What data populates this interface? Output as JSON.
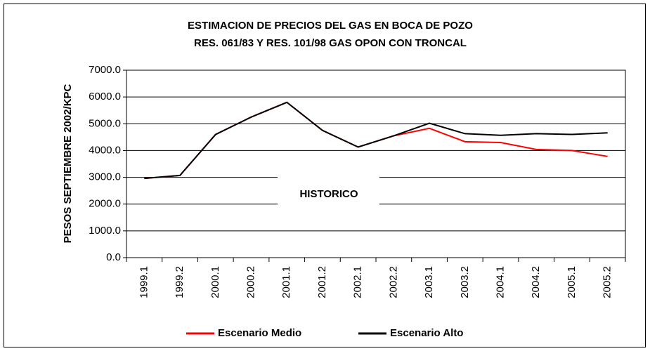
{
  "chart_data": {
    "type": "line",
    "title": "ESTIMACION DE PRECIOS DEL GAS EN BOCA DE POZO",
    "subtitle": "RES. 061/83 Y RES. 101/98 GAS OPON CON TRONCAL",
    "y_label": "PESOS SEPTIEMBRE 2002/KPC",
    "annotation": "HISTORICO",
    "categories": [
      "1999.1",
      "1999.2",
      "2000.1",
      "2000.2",
      "2001.1",
      "2001.2",
      "2002.1",
      "2002.2",
      "2003.1",
      "2003.2",
      "2004.1",
      "2004.2",
      "2005.1",
      "2005.2"
    ],
    "series": [
      {
        "name": "Escenario Medio",
        "color": "#ff0000",
        "values": [
          2960,
          3070,
          4600,
          5250,
          5800,
          4750,
          4130,
          4550,
          4830,
          4330,
          4300,
          4040,
          4000,
          3780
        ]
      },
      {
        "name": "Escenario Alto",
        "color": "#000000",
        "values": [
          2960,
          3070,
          4600,
          5250,
          5800,
          4750,
          4130,
          4550,
          5020,
          4630,
          4570,
          4630,
          4600,
          4660
        ]
      }
    ],
    "ylim": [
      0,
      7000
    ],
    "yticks": [
      {
        "value": 0,
        "label": "0.0"
      },
      {
        "value": 1000,
        "label": "1000.0"
      },
      {
        "value": 2000,
        "label": "2000.0"
      },
      {
        "value": 3000,
        "label": "3000.0"
      },
      {
        "value": 4000,
        "label": "4000.0"
      },
      {
        "value": 5000,
        "label": "5000.0"
      },
      {
        "value": 6000,
        "label": "6000.0"
      },
      {
        "value": 7000,
        "label": "7000.0"
      }
    ],
    "grid": true,
    "legend": "bottom"
  }
}
